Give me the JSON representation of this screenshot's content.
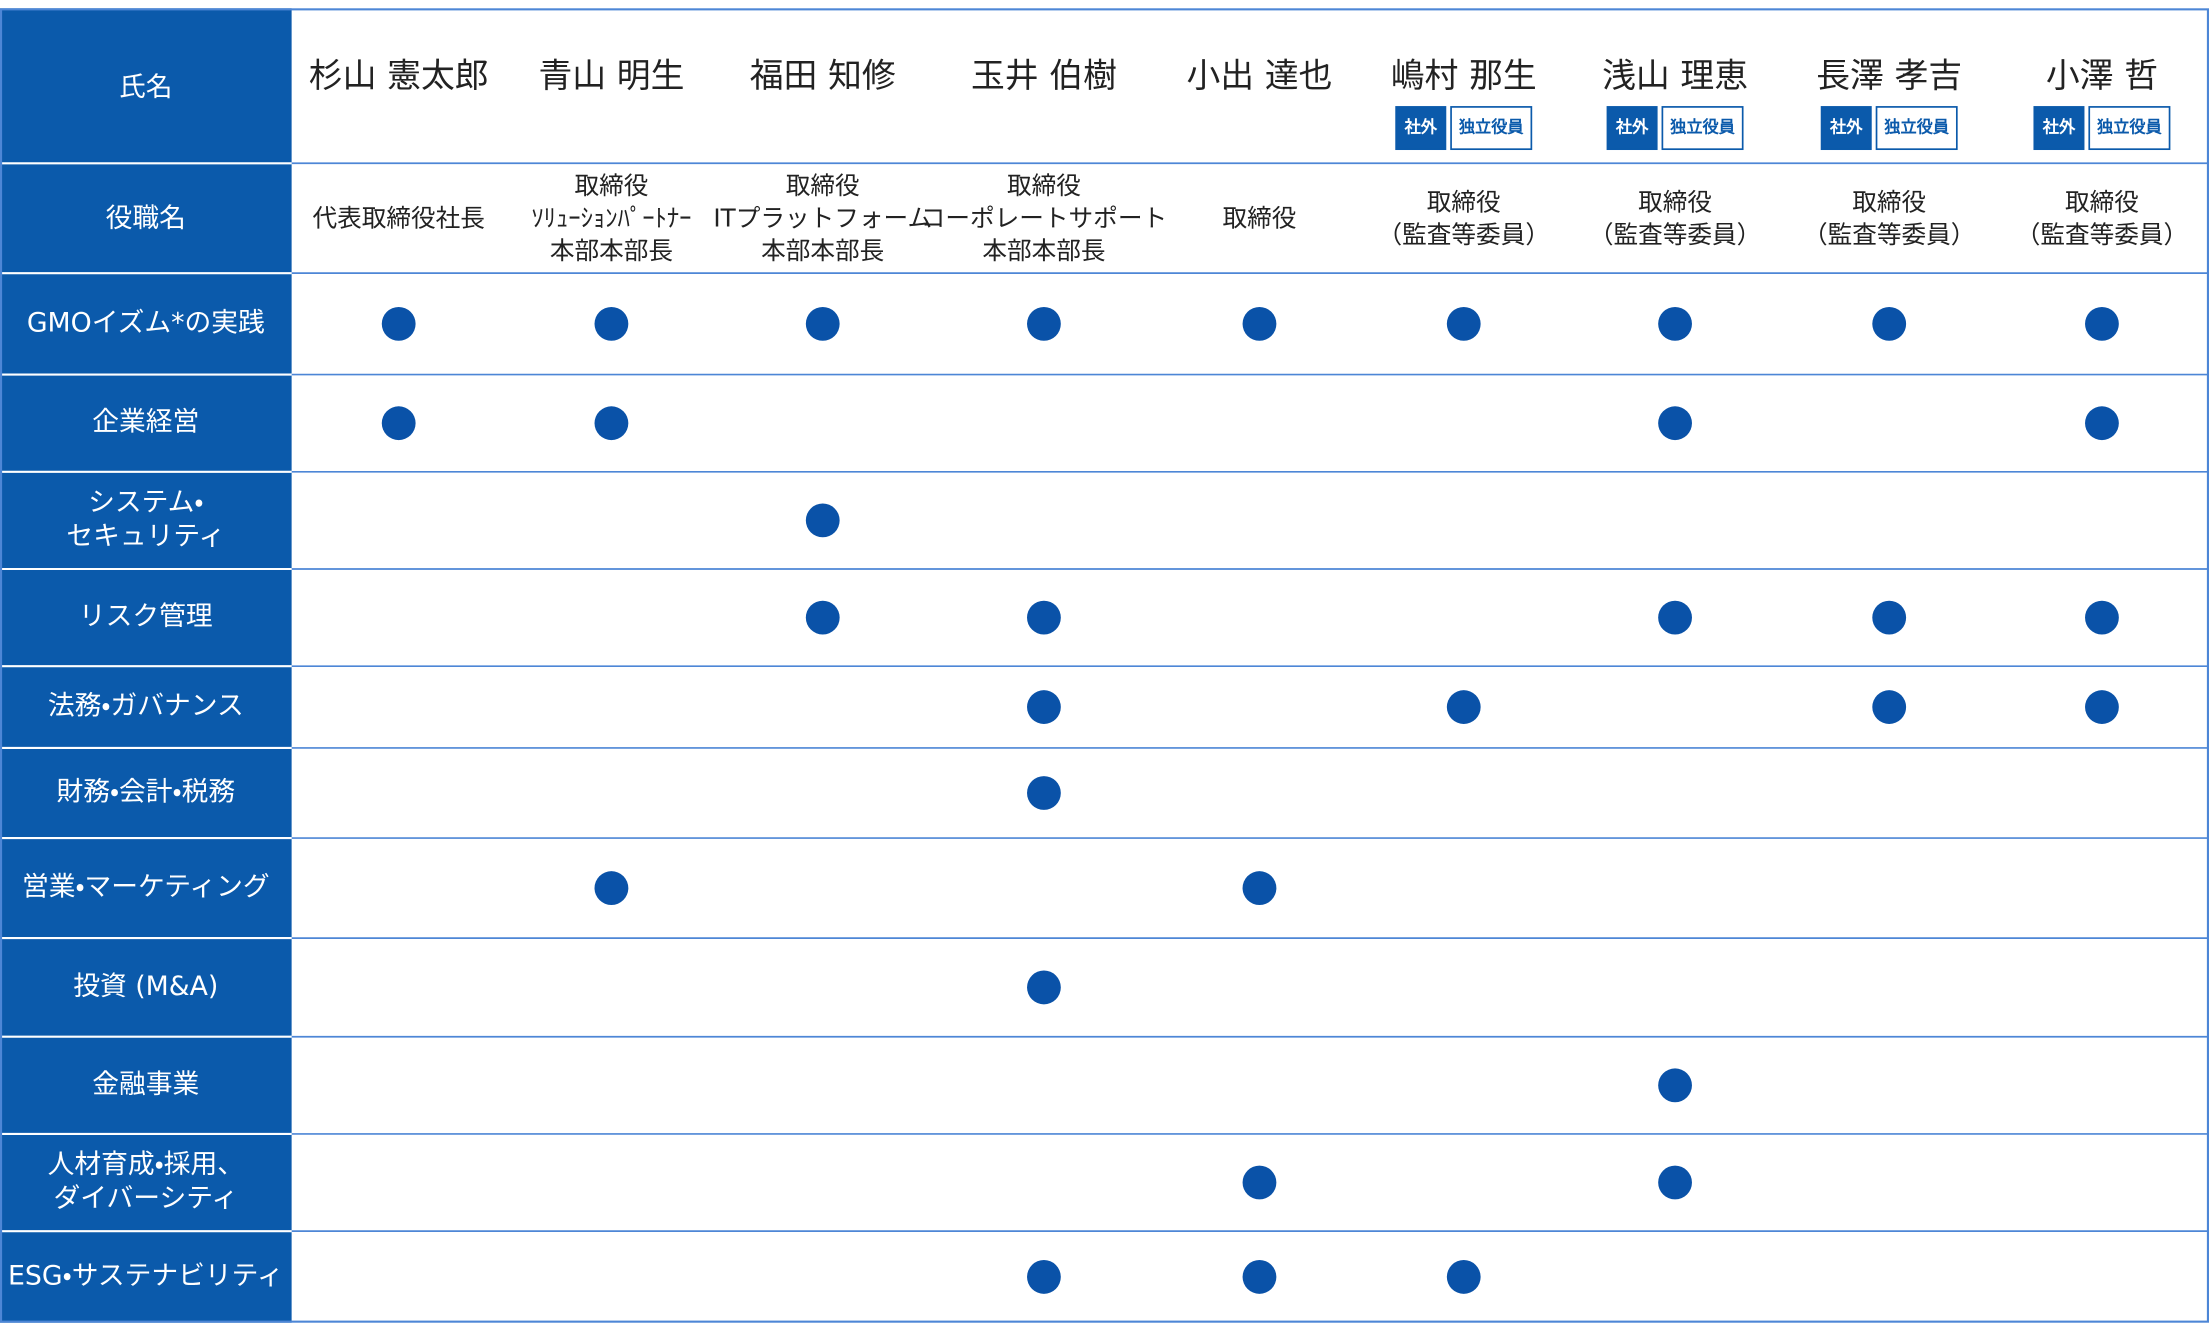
{
  "header": {
    "label": "氏名",
    "names": [
      "杉山 憲太郎",
      "青山 明生",
      "福田 知修",
      "玉井 伯樹",
      "小出 達也",
      "嶋村 那生",
      "浅山 理恵",
      "長澤 孝吉",
      "小澤 哲"
    ],
    "badges": [
      [],
      [],
      [],
      [],
      [],
      [
        "社外",
        "独立役員"
      ],
      [
        "社外",
        "独立役員"
      ],
      [
        "社外",
        "独立役員"
      ],
      [
        "社外",
        "独立役員"
      ]
    ]
  },
  "roles": {
    "label": "役職名",
    "values": [
      [
        "代表取締役社長"
      ],
      [
        "取締役",
        "ｿﾘｭｰｼｮﾝﾊﾟｰﾄﾅｰ",
        "本部本部長"
      ],
      [
        "取締役",
        "ITプラットフォーム",
        "本部本部長"
      ],
      [
        "取締役",
        "コーポレートサポート",
        "本部本部長"
      ],
      [
        "取締役"
      ],
      [
        "取締役",
        "（監査等委員）"
      ],
      [
        "取締役",
        "（監査等委員）"
      ],
      [
        "取締役",
        "（監査等委員）"
      ],
      [
        "取締役",
        "（監査等委員）"
      ]
    ]
  },
  "skills": {
    "rows": [
      {
        "label": [
          "GMOイズム*の実践"
        ],
        "marks": [
          true,
          true,
          true,
          true,
          true,
          true,
          true,
          true,
          true
        ]
      },
      {
        "label": [
          "企業経営"
        ],
        "marks": [
          true,
          true,
          false,
          false,
          false,
          false,
          true,
          false,
          true
        ]
      },
      {
        "label": [
          "システム・",
          "セキュリティ"
        ],
        "marks": [
          false,
          false,
          true,
          false,
          false,
          false,
          false,
          false,
          false
        ]
      },
      {
        "label": [
          "リスク管理"
        ],
        "marks": [
          false,
          false,
          true,
          true,
          false,
          false,
          true,
          true,
          true
        ]
      },
      {
        "label": [
          "法務・ガバナンス"
        ],
        "marks": [
          false,
          false,
          false,
          true,
          false,
          true,
          false,
          true,
          true
        ]
      },
      {
        "label": [
          "財務・会計・税務"
        ],
        "marks": [
          false,
          false,
          false,
          true,
          false,
          false,
          false,
          false,
          false
        ]
      },
      {
        "label": [
          "営業・マーケティング"
        ],
        "marks": [
          false,
          true,
          false,
          false,
          true,
          false,
          false,
          false,
          false
        ]
      },
      {
        "label": [
          "投資 (M&A)"
        ],
        "marks": [
          false,
          false,
          false,
          true,
          false,
          false,
          false,
          false,
          false
        ]
      },
      {
        "label": [
          "金融事業"
        ],
        "marks": [
          false,
          false,
          false,
          false,
          false,
          false,
          true,
          false,
          false
        ]
      },
      {
        "label": [
          "人材育成・採用、",
          "ダイバーシティ"
        ],
        "marks": [
          false,
          false,
          false,
          false,
          true,
          false,
          true,
          false,
          false
        ]
      },
      {
        "label": [
          "ESG・サステナビリティ"
        ],
        "marks": [
          false,
          false,
          false,
          true,
          true,
          true,
          false,
          false,
          false
        ]
      }
    ]
  }
}
